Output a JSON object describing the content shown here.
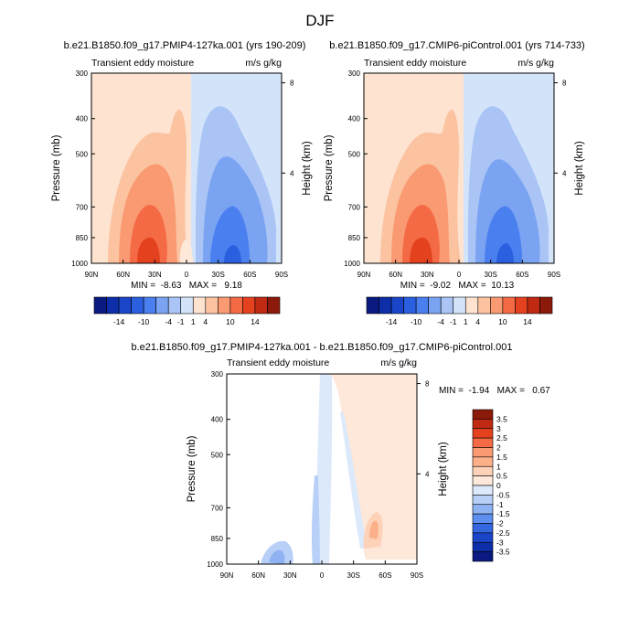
{
  "figure_title": "DJF",
  "chart_data": [
    {
      "type": "heatmap",
      "title": "b.e21.B1850.f09_g17.PMIP4-127ka.001 (yrs 190-209)",
      "subtitle_left": "Transient eddy moisture",
      "subtitle_right": "m/s g/kg",
      "ylabel": "Pressure (mb)",
      "ylabel_right": "Height (km)",
      "x_ticks": [
        "90N",
        "60N",
        "30N",
        "0",
        "30S",
        "60S",
        "90S"
      ],
      "xlim": [
        90,
        -90
      ],
      "y_ticks": [
        "300",
        "400",
        "500",
        "700",
        "850",
        "1000"
      ],
      "y_tick_values": [
        300,
        400,
        500,
        700,
        850,
        1000
      ],
      "height_ticks": [
        "8",
        "4"
      ],
      "ylim": [
        1000,
        300
      ],
      "stats": "MIN =  -8.63   MAX =   9.18",
      "min": -8.63,
      "max": 9.18
    },
    {
      "type": "heatmap",
      "title": "b.e21.B1850.f09_g17.CMIP6-piControl.001 (yrs 714-733)",
      "subtitle_left": "Transient eddy moisture",
      "subtitle_right": "m/s g/kg",
      "ylabel": "Pressure (mb)",
      "ylabel_right": "Height (km)",
      "x_ticks": [
        "90N",
        "60N",
        "30N",
        "0",
        "30S",
        "60S",
        "90S"
      ],
      "xlim": [
        90,
        -90
      ],
      "y_ticks": [
        "300",
        "400",
        "500",
        "700",
        "850",
        "1000"
      ],
      "y_tick_values": [
        300,
        400,
        500,
        700,
        850,
        1000
      ],
      "height_ticks": [
        "8",
        "4"
      ],
      "ylim": [
        1000,
        300
      ],
      "stats": "MIN =  -9.02   MAX =  10.13",
      "min": -9.02,
      "max": 10.13
    },
    {
      "type": "heatmap",
      "title": "b.e21.B1850.f09_g17.PMIP4-127ka.001 - b.e21.B1850.f09_g17.CMIP6-piControl.001",
      "subtitle_left": "Transient eddy moisture",
      "subtitle_right": "m/s g/kg",
      "ylabel": "Pressure (mb)",
      "ylabel_right": "Height (km)",
      "x_ticks": [
        "90N",
        "60N",
        "30N",
        "0",
        "30S",
        "60S",
        "90S"
      ],
      "xlim": [
        90,
        -90
      ],
      "y_ticks": [
        "300",
        "400",
        "500",
        "700",
        "850",
        "1000"
      ],
      "y_tick_values": [
        300,
        400,
        500,
        700,
        850,
        1000
      ],
      "height_ticks": [
        "8",
        "4"
      ],
      "ylim": [
        1000,
        300
      ],
      "stats": "MIN =  -1.94   MAX =   0.67",
      "min": -1.94,
      "max": 0.67
    }
  ],
  "colorbar_abs": {
    "labels": [
      "-14",
      "-10",
      "-4",
      "-1",
      "1",
      "4",
      "10",
      "14"
    ],
    "colors": [
      "#0a1a80",
      "#0d2ea8",
      "#1a45c8",
      "#2a5fe0",
      "#4a7ff0",
      "#7aa3f2",
      "#a9c4f5",
      "#d3e4fa",
      "#fde3d0",
      "#fcc3a1",
      "#f99a72",
      "#f46a45",
      "#e4421f",
      "#c02a12",
      "#8c1a0a"
    ]
  },
  "colorbar_diff": {
    "labels": [
      "3.5",
      "3",
      "2.5",
      "2",
      "1.5",
      "1",
      "0.5",
      "0",
      "-0.5",
      "-1",
      "-1.5",
      "-2",
      "-2.5",
      "-3",
      "-3.5"
    ],
    "colors": [
      "#8c1a0a",
      "#c02a12",
      "#e4421f",
      "#f46a45",
      "#f99a72",
      "#fcb08a",
      "#fdd2b8",
      "#fde8da",
      "#dce9fb",
      "#b8d0f7",
      "#8fb2f3",
      "#5e8ff0",
      "#3568e0",
      "#1a45c8",
      "#0d2ea8",
      "#0a1a80"
    ]
  }
}
